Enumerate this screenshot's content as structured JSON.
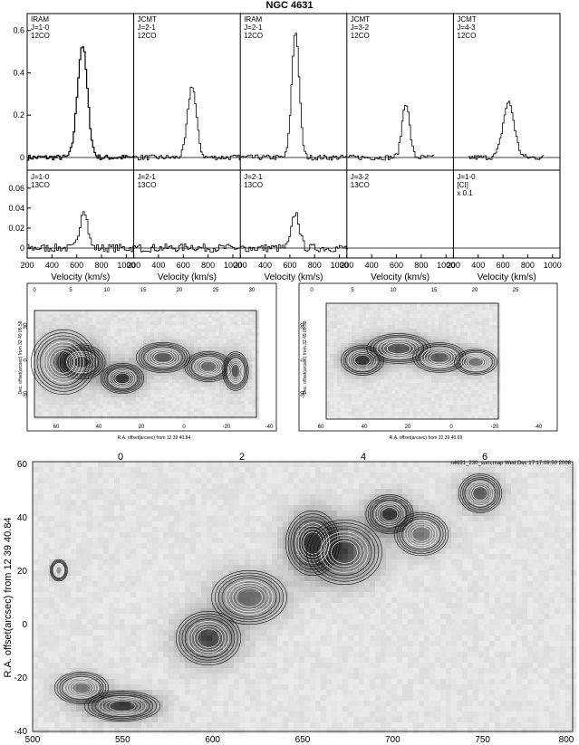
{
  "figure": {
    "title": "NGC 4631"
  },
  "spectra": {
    "row1": [
      {
        "telescope": "IRAM",
        "transition": "J=1-0",
        "species": "12CO"
      },
      {
        "telescope": "JCMT",
        "transition": "J=2-1",
        "species": "12CO"
      },
      {
        "telescope": "IRAM",
        "transition": "J=2-1",
        "species": "12CO"
      },
      {
        "telescope": "JCMT",
        "transition": "J=3-2",
        "species": "12CO"
      },
      {
        "telescope": "JCMT",
        "transition": "J=4-3",
        "species": "12CO"
      }
    ],
    "row2": [
      {
        "transition": "J=1-0",
        "species": "13CO",
        "extra": ""
      },
      {
        "transition": "J=2-1",
        "species": "13CO",
        "extra": ""
      },
      {
        "transition": "J=2-1",
        "species": "13CO",
        "extra": ""
      },
      {
        "transition": "J=3-2",
        "species": "13CO",
        "extra": ""
      },
      {
        "transition": "J=1-0",
        "species": "[CI]",
        "extra": "x 0.1"
      }
    ],
    "row1_yticks": [
      "0.6",
      "0.4",
      "0.2",
      "0"
    ],
    "row2_yticks": [
      "0.06",
      "0.04",
      "0.02",
      "0"
    ],
    "xticks": [
      "200",
      "400",
      "600",
      "800",
      "1000"
    ],
    "xlabel": "Velocity (km/s)"
  },
  "maps_small": {
    "left": {
      "top_ticks": [
        "0",
        "5",
        "10",
        "15",
        "20",
        "25",
        "30"
      ],
      "bottom_ticks": [
        "60",
        "40",
        "20",
        "0",
        "-20",
        "-40"
      ],
      "left_ticks": [
        "30",
        "0",
        "-30"
      ],
      "xlabel": "R.A. offset(arcsec) from 12 39 40.84",
      "ylabel": "Dec. offset(arcsec) from 32 49 05.58"
    },
    "right": {
      "top_ticks": [
        "0",
        "5",
        "10",
        "15",
        "20",
        "25"
      ],
      "bottom_ticks": [
        "60",
        "40",
        "20",
        "0",
        "-20",
        "-40"
      ],
      "left_ticks": [
        "30",
        "0",
        "-30"
      ],
      "xlabel": "R.A. offset(arcsec) from 12 39 40.69",
      "ylabel": "Dec. offset(arcsec) from 32 49 05.58"
    }
  },
  "pv_map": {
    "top_ticks": [
      "0",
      "2",
      "4",
      "6"
    ],
    "bottom_ticks": [
      "500",
      "550",
      "600",
      "650",
      "700",
      "750",
      "800"
    ],
    "left_ticks": [
      "60",
      "40",
      "20",
      "0",
      "-20",
      "-40"
    ],
    "ylabel": "R.A. offset(arcsec) from 12 39 40.84",
    "header": "n4631_230_sum.map Wed Dec 17 17:08:50 2008"
  }
}
